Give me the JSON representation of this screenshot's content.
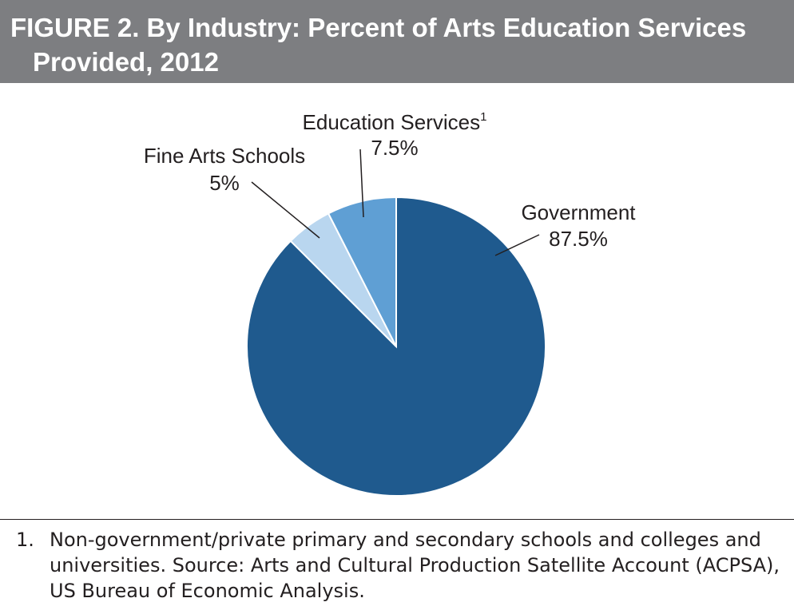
{
  "figure": {
    "title_line1": "FIGURE 2. By Industry: Percent of Arts Education Services",
    "title_line2": "Provided, 2012"
  },
  "chart_data": {
    "type": "pie",
    "slices": [
      {
        "label": "Government",
        "value_label": "87.5%",
        "value": 87.5,
        "color": "#1f5a8e"
      },
      {
        "label": "Fine Arts Schools",
        "value_label": "5%",
        "value": 5,
        "color": "#b9d6ef"
      },
      {
        "label": "Education Services",
        "label_sup": "1",
        "value_label": "7.5%",
        "value": 7.5,
        "color": "#5f9fd4"
      }
    ]
  },
  "footnote": {
    "number": "1.",
    "text": "Non-government/private primary and secondary schools and colleges and universities. Source: Arts and Cultural Production Satellite Account (ACPSA), US Bureau of Economic Analysis."
  },
  "colors": {
    "title_bar": "#7d7e81",
    "title_text": "#ffffff",
    "leader_line": "#231f20"
  }
}
